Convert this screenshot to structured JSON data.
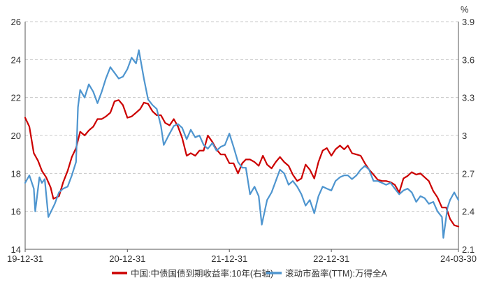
{
  "chart_data": {
    "type": "line",
    "x_tick_labels": [
      "19-12-31",
      "20-12-31",
      "21-12-31",
      "22-12-31",
      "24-03-30"
    ],
    "x_tick_dates": [
      "2019-12-31",
      "2020-12-31",
      "2021-12-31",
      "2022-12-31",
      "2024-03-30"
    ],
    "x_range": [
      "2019-12-31",
      "2024-03-30"
    ],
    "y_left": {
      "range": [
        14,
        26
      ],
      "ticks": [
        14,
        16,
        18,
        20,
        22,
        24,
        26
      ],
      "tick_labels": [
        "14",
        "16",
        "18",
        "20",
        "22",
        "24",
        "26"
      ]
    },
    "y_right": {
      "range": [
        2.1,
        3.9
      ],
      "ticks": [
        2.1,
        2.4,
        2.7,
        3.0,
        3.3,
        3.6,
        3.9
      ],
      "tick_labels": [
        "2.1",
        "2.4",
        "2.7",
        "3",
        "3.3",
        "3.6",
        "3.9"
      ],
      "unit": "%"
    },
    "grid": "horizontal dashed",
    "legend_position": "bottom",
    "series": [
      {
        "name": "中国:中债国债到期收益率:10年(右轴)",
        "axis": "right",
        "color": "#cc0000",
        "points": [
          [
            "2019-12-31",
            3.14
          ],
          [
            "2020-01-15",
            3.07
          ],
          [
            "2020-01-31",
            2.86
          ],
          [
            "2020-02-15",
            2.8
          ],
          [
            "2020-02-29",
            2.72
          ],
          [
            "2020-03-15",
            2.67
          ],
          [
            "2020-03-31",
            2.59
          ],
          [
            "2020-04-10",
            2.5
          ],
          [
            "2020-04-30",
            2.52
          ],
          [
            "2020-05-15",
            2.63
          ],
          [
            "2020-05-31",
            2.72
          ],
          [
            "2020-06-15",
            2.83
          ],
          [
            "2020-06-30",
            2.9
          ],
          [
            "2020-07-15",
            3.03
          ],
          [
            "2020-07-31",
            3.0
          ],
          [
            "2020-08-15",
            3.04
          ],
          [
            "2020-08-31",
            3.07
          ],
          [
            "2020-09-15",
            3.13
          ],
          [
            "2020-09-30",
            3.13
          ],
          [
            "2020-10-15",
            3.15
          ],
          [
            "2020-10-31",
            3.18
          ],
          [
            "2020-11-15",
            3.27
          ],
          [
            "2020-11-30",
            3.28
          ],
          [
            "2020-12-15",
            3.24
          ],
          [
            "2020-12-31",
            3.14
          ],
          [
            "2021-01-15",
            3.15
          ],
          [
            "2021-01-31",
            3.18
          ],
          [
            "2021-02-15",
            3.21
          ],
          [
            "2021-02-28",
            3.26
          ],
          [
            "2021-03-15",
            3.25
          ],
          [
            "2021-03-31",
            3.19
          ],
          [
            "2021-04-15",
            3.16
          ],
          [
            "2021-04-30",
            3.16
          ],
          [
            "2021-05-15",
            3.1
          ],
          [
            "2021-05-31",
            3.08
          ],
          [
            "2021-06-15",
            3.13
          ],
          [
            "2021-06-30",
            3.07
          ],
          [
            "2021-07-15",
            2.98
          ],
          [
            "2021-07-31",
            2.84
          ],
          [
            "2021-08-15",
            2.86
          ],
          [
            "2021-08-31",
            2.84
          ],
          [
            "2021-09-15",
            2.88
          ],
          [
            "2021-09-30",
            2.88
          ],
          [
            "2021-10-15",
            3.0
          ],
          [
            "2021-10-31",
            2.95
          ],
          [
            "2021-11-15",
            2.89
          ],
          [
            "2021-11-30",
            2.85
          ],
          [
            "2021-12-15",
            2.85
          ],
          [
            "2021-12-31",
            2.78
          ],
          [
            "2022-01-15",
            2.78
          ],
          [
            "2022-01-31",
            2.7
          ],
          [
            "2022-02-15",
            2.78
          ],
          [
            "2022-02-28",
            2.81
          ],
          [
            "2022-03-15",
            2.81
          ],
          [
            "2022-03-31",
            2.79
          ],
          [
            "2022-04-15",
            2.76
          ],
          [
            "2022-04-30",
            2.84
          ],
          [
            "2022-05-15",
            2.77
          ],
          [
            "2022-05-31",
            2.74
          ],
          [
            "2022-06-15",
            2.79
          ],
          [
            "2022-06-30",
            2.83
          ],
          [
            "2022-07-15",
            2.79
          ],
          [
            "2022-07-31",
            2.76
          ],
          [
            "2022-08-15",
            2.69
          ],
          [
            "2022-08-31",
            2.64
          ],
          [
            "2022-09-15",
            2.66
          ],
          [
            "2022-09-30",
            2.77
          ],
          [
            "2022-10-15",
            2.73
          ],
          [
            "2022-10-31",
            2.66
          ],
          [
            "2022-11-15",
            2.79
          ],
          [
            "2022-11-30",
            2.88
          ],
          [
            "2022-12-15",
            2.9
          ],
          [
            "2022-12-31",
            2.84
          ],
          [
            "2023-01-15",
            2.89
          ],
          [
            "2023-01-31",
            2.92
          ],
          [
            "2023-02-15",
            2.89
          ],
          [
            "2023-02-28",
            2.92
          ],
          [
            "2023-03-15",
            2.86
          ],
          [
            "2023-03-31",
            2.85
          ],
          [
            "2023-04-15",
            2.84
          ],
          [
            "2023-04-30",
            2.78
          ],
          [
            "2023-05-15",
            2.73
          ],
          [
            "2023-05-31",
            2.69
          ],
          [
            "2023-06-15",
            2.65
          ],
          [
            "2023-06-30",
            2.64
          ],
          [
            "2023-07-15",
            2.64
          ],
          [
            "2023-07-31",
            2.63
          ],
          [
            "2023-08-15",
            2.61
          ],
          [
            "2023-08-31",
            2.55
          ],
          [
            "2023-09-15",
            2.66
          ],
          [
            "2023-09-30",
            2.68
          ],
          [
            "2023-10-15",
            2.71
          ],
          [
            "2023-10-31",
            2.69
          ],
          [
            "2023-11-15",
            2.7
          ],
          [
            "2023-11-30",
            2.67
          ],
          [
            "2023-12-15",
            2.64
          ],
          [
            "2023-12-31",
            2.56
          ],
          [
            "2024-01-15",
            2.51
          ],
          [
            "2024-01-31",
            2.43
          ],
          [
            "2024-02-15",
            2.43
          ],
          [
            "2024-02-29",
            2.34
          ],
          [
            "2024-03-15",
            2.29
          ],
          [
            "2024-03-30",
            2.28
          ]
        ]
      },
      {
        "name": "滚动市盈率(TTM):万得全A",
        "axis": "left",
        "color": "#4e95cf",
        "points": [
          [
            "2019-12-31",
            17.5
          ],
          [
            "2020-01-15",
            17.9
          ],
          [
            "2020-01-31",
            17.2
          ],
          [
            "2020-02-05",
            16.0
          ],
          [
            "2020-02-20",
            17.8
          ],
          [
            "2020-02-29",
            17.5
          ],
          [
            "2020-03-10",
            17.7
          ],
          [
            "2020-03-23",
            15.7
          ],
          [
            "2020-04-15",
            16.4
          ],
          [
            "2020-04-30",
            17.0
          ],
          [
            "2020-05-15",
            17.2
          ],
          [
            "2020-05-31",
            17.3
          ],
          [
            "2020-06-15",
            17.9
          ],
          [
            "2020-06-30",
            18.6
          ],
          [
            "2020-07-07",
            21.5
          ],
          [
            "2020-07-15",
            22.4
          ],
          [
            "2020-07-31",
            22.0
          ],
          [
            "2020-08-15",
            22.7
          ],
          [
            "2020-08-31",
            22.3
          ],
          [
            "2020-09-15",
            21.7
          ],
          [
            "2020-09-30",
            22.3
          ],
          [
            "2020-10-15",
            23.0
          ],
          [
            "2020-10-31",
            23.6
          ],
          [
            "2020-11-15",
            23.3
          ],
          [
            "2020-11-30",
            23.0
          ],
          [
            "2020-12-15",
            23.1
          ],
          [
            "2020-12-31",
            23.5
          ],
          [
            "2021-01-15",
            24.1
          ],
          [
            "2021-01-31",
            23.8
          ],
          [
            "2021-02-10",
            24.5
          ],
          [
            "2021-02-28",
            23.0
          ],
          [
            "2021-03-15",
            21.9
          ],
          [
            "2021-03-31",
            21.6
          ],
          [
            "2021-04-15",
            21.4
          ],
          [
            "2021-04-30",
            20.5
          ],
          [
            "2021-05-10",
            19.5
          ],
          [
            "2021-05-31",
            20.1
          ],
          [
            "2021-06-15",
            20.5
          ],
          [
            "2021-06-30",
            20.6
          ],
          [
            "2021-07-15",
            20.4
          ],
          [
            "2021-07-31",
            19.8
          ],
          [
            "2021-08-15",
            20.3
          ],
          [
            "2021-08-31",
            19.9
          ],
          [
            "2021-09-15",
            20.0
          ],
          [
            "2021-09-30",
            19.5
          ],
          [
            "2021-10-15",
            19.3
          ],
          [
            "2021-10-31",
            19.6
          ],
          [
            "2021-11-15",
            19.2
          ],
          [
            "2021-11-30",
            19.4
          ],
          [
            "2021-12-15",
            19.5
          ],
          [
            "2021-12-31",
            20.1
          ],
          [
            "2022-01-15",
            19.4
          ],
          [
            "2022-01-31",
            18.6
          ],
          [
            "2022-02-15",
            18.3
          ],
          [
            "2022-02-28",
            18.3
          ],
          [
            "2022-03-15",
            16.9
          ],
          [
            "2022-03-31",
            17.3
          ],
          [
            "2022-04-15",
            16.8
          ],
          [
            "2022-04-26",
            15.3
          ],
          [
            "2022-05-15",
            16.6
          ],
          [
            "2022-05-31",
            17.0
          ],
          [
            "2022-06-15",
            17.6
          ],
          [
            "2022-06-30",
            18.2
          ],
          [
            "2022-07-15",
            18.0
          ],
          [
            "2022-07-31",
            17.4
          ],
          [
            "2022-08-15",
            17.6
          ],
          [
            "2022-08-31",
            17.3
          ],
          [
            "2022-09-15",
            16.9
          ],
          [
            "2022-09-30",
            16.3
          ],
          [
            "2022-10-15",
            16.6
          ],
          [
            "2022-10-31",
            15.9
          ],
          [
            "2022-11-15",
            16.8
          ],
          [
            "2022-11-30",
            17.3
          ],
          [
            "2022-12-15",
            17.2
          ],
          [
            "2022-12-31",
            17.1
          ],
          [
            "2023-01-15",
            17.6
          ],
          [
            "2023-01-31",
            17.8
          ],
          [
            "2023-02-15",
            17.9
          ],
          [
            "2023-02-28",
            17.9
          ],
          [
            "2023-03-15",
            17.7
          ],
          [
            "2023-03-31",
            17.9
          ],
          [
            "2023-04-15",
            18.2
          ],
          [
            "2023-04-30",
            18.4
          ],
          [
            "2023-05-15",
            18.2
          ],
          [
            "2023-05-31",
            17.6
          ],
          [
            "2023-06-15",
            17.6
          ],
          [
            "2023-06-30",
            17.5
          ],
          [
            "2023-07-15",
            17.4
          ],
          [
            "2023-07-31",
            17.5
          ],
          [
            "2023-08-15",
            17.2
          ],
          [
            "2023-08-31",
            16.9
          ],
          [
            "2023-09-15",
            17.1
          ],
          [
            "2023-09-30",
            17.2
          ],
          [
            "2023-10-15",
            17.0
          ],
          [
            "2023-10-31",
            16.5
          ],
          [
            "2023-11-15",
            16.8
          ],
          [
            "2023-11-30",
            16.7
          ],
          [
            "2023-12-15",
            16.4
          ],
          [
            "2023-12-31",
            16.5
          ],
          [
            "2024-01-15",
            16.0
          ],
          [
            "2024-01-31",
            15.7
          ],
          [
            "2024-02-05",
            14.6
          ],
          [
            "2024-02-20",
            16.2
          ],
          [
            "2024-02-29",
            16.6
          ],
          [
            "2024-03-15",
            17.0
          ],
          [
            "2024-03-22",
            16.8
          ],
          [
            "2024-03-30",
            16.6
          ]
        ]
      }
    ]
  }
}
